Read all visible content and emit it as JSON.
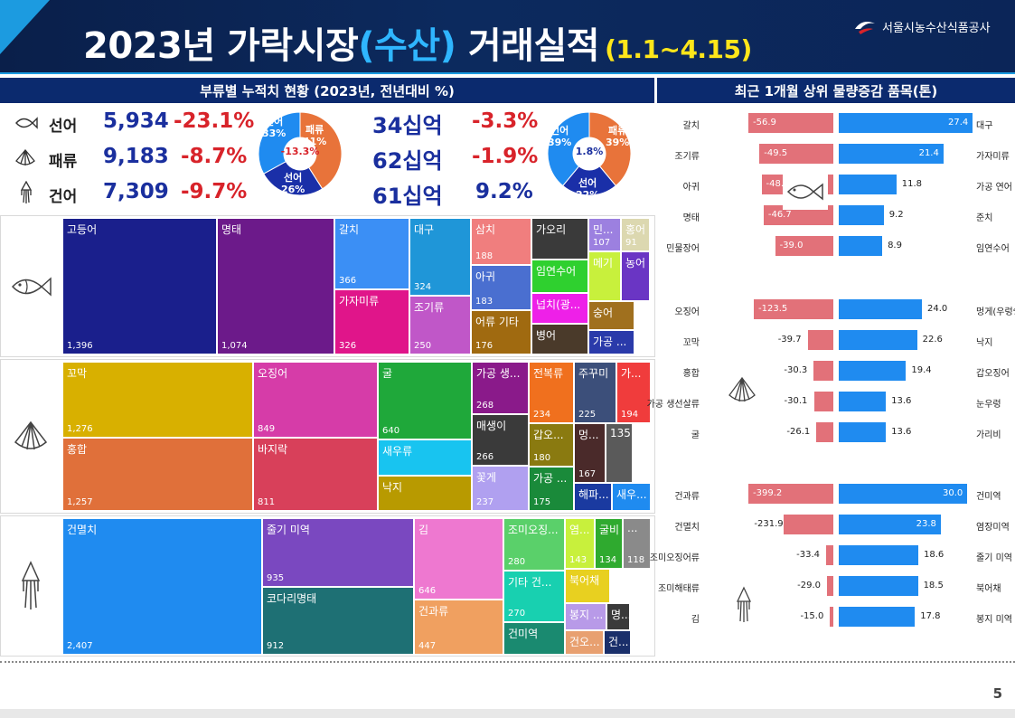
{
  "header": {
    "title_pre": "2023년 가락시장",
    "title_acc": "(수산)",
    "title_post": "거래실적",
    "period": "(1.1~4.15)",
    "org": "서울시농수산식품공사"
  },
  "left_section": {
    "heading": "부류별 누적치 현황 (2023년, 전년대비 %)",
    "rows": [
      {
        "icon": "fish-icon",
        "label": "선어",
        "volume": "5,934",
        "volume_change": "-23.1%",
        "amount": "34십억",
        "amount_change": "-3.3%"
      },
      {
        "icon": "shell-icon",
        "label": "패류",
        "volume": "9,183",
        "volume_change": "-8.7%",
        "amount": "62십억",
        "amount_change": "-1.9%"
      },
      {
        "icon": "squid-icon",
        "label": "건어",
        "volume": "7,309",
        "volume_change": "-9.7%",
        "amount": "61십억",
        "amount_change": "9.2%"
      }
    ],
    "donut_volume": {
      "center": "-13.3%",
      "slices": [
        {
          "label": "패류",
          "pct": "41%",
          "value": 41,
          "color": "#e8733a"
        },
        {
          "label": "선어",
          "pct": "26%",
          "value": 26,
          "color": "#1a2fa8"
        },
        {
          "label": "건어",
          "pct": "33%",
          "value": 33,
          "color": "#1f8bf0"
        }
      ]
    },
    "donut_amount": {
      "center": "1.8%",
      "slices": [
        {
          "label": "패류",
          "pct": "39%",
          "value": 39,
          "color": "#e8733a"
        },
        {
          "label": "선어",
          "pct": "22%",
          "value": 22,
          "color": "#1a2fa8"
        },
        {
          "label": "건어",
          "pct": "39%",
          "value": 39,
          "color": "#1f8bf0"
        }
      ]
    }
  },
  "treemap": {
    "fish": [
      {
        "name": "고등어",
        "value": "1,396",
        "color": "#1a1f8c"
      },
      {
        "name": "명태",
        "value": "1,074",
        "color": "#6c1a8a"
      },
      {
        "name": "갈치",
        "value": "366",
        "color": "#3b8ff5"
      },
      {
        "name": "가자미류",
        "value": "326",
        "color": "#e0158a"
      },
      {
        "name": "대구",
        "value": "324",
        "color": "#1f96d8"
      },
      {
        "name": "조기류",
        "value": "250",
        "color": "#c057c8"
      },
      {
        "name": "삼치",
        "value": "188",
        "color": "#f07e7e"
      },
      {
        "name": "아귀",
        "value": "183",
        "color": "#4a6fd0"
      },
      {
        "name": "어류 기타",
        "value": "176",
        "color": "#a06a10"
      },
      {
        "name": "가오리",
        "value": "",
        "color": "#3a3a3a"
      },
      {
        "name": "민...",
        "value": "107",
        "color": "#9c80e0"
      },
      {
        "name": "홍어",
        "value": "91",
        "color": "#dcd8b0"
      },
      {
        "name": "임연수어",
        "value": "",
        "color": "#2fd02f"
      },
      {
        "name": "메기",
        "value": "",
        "color": "#c8f03c"
      },
      {
        "name": "농어",
        "value": "",
        "color": "#6a35c4"
      },
      {
        "name": "넙치(광...",
        "value": "",
        "color": "#ee20e8"
      },
      {
        "name": "숭어",
        "value": "",
        "color": "#a0701e"
      },
      {
        "name": "병어",
        "value": "",
        "color": "#4a3a2a"
      },
      {
        "name": "가공 ...",
        "value": "",
        "color": "#2a3aaa"
      }
    ],
    "shell": [
      {
        "name": "꼬막",
        "value": "1,276",
        "color": "#d8b000"
      },
      {
        "name": "오징어",
        "value": "849",
        "color": "#d63ca8"
      },
      {
        "name": "굴",
        "value": "640",
        "color": "#1fa83a"
      },
      {
        "name": "가공 생...",
        "value": "268",
        "color": "#8a1a8a"
      },
      {
        "name": "전복류",
        "value": "234",
        "color": "#f0701e"
      },
      {
        "name": "주꾸미",
        "value": "225",
        "color": "#3c4f7a"
      },
      {
        "name": "가...",
        "value": "194",
        "color": "#f03c3c"
      },
      {
        "name": "홍합",
        "value": "1,257",
        "color": "#e0703a"
      },
      {
        "name": "바지락",
        "value": "811",
        "color": "#d8405a"
      },
      {
        "name": "새우류",
        "value": "",
        "color": "#18c4f0"
      },
      {
        "name": "매생이",
        "value": "266",
        "color": "#3a3a3a"
      },
      {
        "name": "갑오...",
        "value": "180",
        "color": "#8a7a10"
      },
      {
        "name": "멍...",
        "value": "167",
        "color": "#4a2a2a"
      },
      {
        "name": "135",
        "value": "",
        "color": "#5a5a5a"
      },
      {
        "name": "낙지",
        "value": "",
        "color": "#b89a00"
      },
      {
        "name": "꽃게",
        "value": "237",
        "color": "#b0a0f0"
      },
      {
        "name": "가공 ...",
        "value": "175",
        "color": "#1a8a3a"
      },
      {
        "name": "해파...",
        "value": "",
        "color": "#1a3aa0"
      },
      {
        "name": "새우...",
        "value": "",
        "color": "#1f8bf0"
      }
    ],
    "dried": [
      {
        "name": "건멸치",
        "value": "2,407",
        "color": "#1f8bf0"
      },
      {
        "name": "줄기 미역",
        "value": "935",
        "color": "#7a48c0"
      },
      {
        "name": "코다리명태",
        "value": "912",
        "color": "#1e7074"
      },
      {
        "name": "김",
        "value": "646",
        "color": "#ee78d0"
      },
      {
        "name": "건과류",
        "value": "447",
        "color": "#f0a060"
      },
      {
        "name": "조미오징...",
        "value": "280",
        "color": "#5ad06a"
      },
      {
        "name": "염...",
        "value": "143",
        "color": "#c8f03c"
      },
      {
        "name": "굴비",
        "value": "134",
        "color": "#2faa2f"
      },
      {
        "name": "...",
        "value": "118",
        "color": "#8a8a8a"
      },
      {
        "name": "기타 건...",
        "value": "270",
        "color": "#18d0b0"
      },
      {
        "name": "북어채",
        "value": "",
        "color": "#e8d020"
      },
      {
        "name": "건미역",
        "value": "",
        "color": "#1a8a70"
      },
      {
        "name": "봉지 ...",
        "value": "",
        "color": "#b89ae8"
      },
      {
        "name": "명...",
        "value": "",
        "color": "#3a3a3a"
      },
      {
        "name": "건오...",
        "value": "",
        "color": "#e8a070"
      },
      {
        "name": "건...",
        "value": "",
        "color": "#1a2f6a"
      }
    ]
  },
  "right_section": {
    "heading": "최근 1개월 상위 물량증감 품목(톤)",
    "groups": [
      {
        "icon": "fish-icon",
        "rows": [
          {
            "neg_label": "갈치",
            "neg_value": -56.9,
            "neg_text": "-56.9",
            "pos_label": "대구",
            "pos_value": 27.4,
            "pos_text": "27.4"
          },
          {
            "neg_label": "조기류",
            "neg_value": -49.5,
            "neg_text": "-49.5",
            "pos_label": "가자미류",
            "pos_value": 21.4,
            "pos_text": "21.4"
          },
          {
            "neg_label": "아귀",
            "neg_value": -48.1,
            "neg_text": "-48.1",
            "pos_label": "가공 연어",
            "pos_value": 11.8,
            "pos_text": "11.8"
          },
          {
            "neg_label": "명태",
            "neg_value": -46.7,
            "neg_text": "-46.7",
            "pos_label": "준치",
            "pos_value": 9.2,
            "pos_text": "9.2"
          },
          {
            "neg_label": "민물장어",
            "neg_value": -39.0,
            "neg_text": "-39.0",
            "pos_label": "임연수어",
            "pos_value": 8.9,
            "pos_text": "8.9"
          }
        ]
      },
      {
        "icon": "shell-icon",
        "rows": [
          {
            "neg_label": "오징어",
            "neg_value": -123.5,
            "neg_text": "-123.5",
            "pos_label": "멍게(우렁쉥이)",
            "pos_value": 24.0,
            "pos_text": "24.0"
          },
          {
            "neg_label": "꼬막",
            "neg_value": -39.7,
            "neg_text": "-39.7",
            "pos_label": "낙지",
            "pos_value": 22.6,
            "pos_text": "22.6"
          },
          {
            "neg_label": "홍합",
            "neg_value": -30.3,
            "neg_text": "-30.3",
            "pos_label": "갑오징어",
            "pos_value": 19.4,
            "pos_text": "19.4"
          },
          {
            "neg_label": "가공 생선살류",
            "neg_value": -30.1,
            "neg_text": "-30.1",
            "pos_label": "눈우렁",
            "pos_value": 13.6,
            "pos_text": "13.6"
          },
          {
            "neg_label": "굴",
            "neg_value": -26.1,
            "neg_text": "-26.1",
            "pos_label": "가리비",
            "pos_value": 13.6,
            "pos_text": "13.6"
          }
        ]
      },
      {
        "icon": "squid-icon",
        "rows": [
          {
            "neg_label": "건과류",
            "neg_value": -399.2,
            "neg_text": "-399.2",
            "pos_label": "건미역",
            "pos_value": 30.0,
            "pos_text": "30.0"
          },
          {
            "neg_label": "건멸치",
            "neg_value": -231.9,
            "neg_text": "-231.9",
            "pos_label": "염장미역",
            "pos_value": 23.8,
            "pos_text": "23.8"
          },
          {
            "neg_label": "조미오징어류",
            "neg_value": -33.4,
            "neg_text": "-33.4",
            "pos_label": "줄기 미역",
            "pos_value": 18.6,
            "pos_text": "18.6"
          },
          {
            "neg_label": "조미해태류",
            "neg_value": -29.0,
            "neg_text": "-29.0",
            "pos_label": "북어채",
            "pos_value": 18.5,
            "pos_text": "18.5"
          },
          {
            "neg_label": "김",
            "neg_value": -15.0,
            "neg_text": "-15.0",
            "pos_label": "봉지 미역",
            "pos_value": 17.8,
            "pos_text": "17.8"
          }
        ]
      }
    ]
  },
  "page_number": "5"
}
